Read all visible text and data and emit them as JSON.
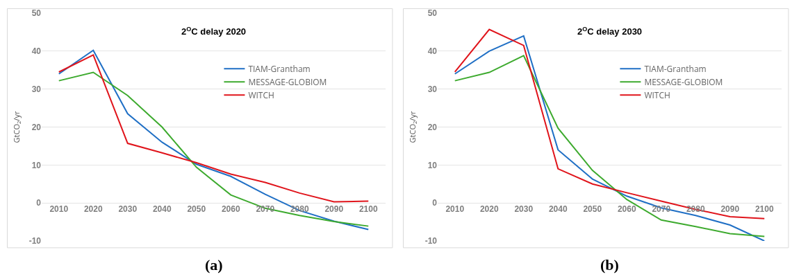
{
  "chart_data": [
    {
      "type": "line",
      "title": "2$^{O}$C delay 2020",
      "ylabel": "GtCO$_{2}$/yr",
      "categories": [
        "2010",
        "2020",
        "2030",
        "2040",
        "2050",
        "2060",
        "2070",
        "2080",
        "2090",
        "2100"
      ],
      "series": [
        {
          "name": "TIAM-Grantham",
          "color": "#1f6fc5",
          "values": [
            34,
            40.2,
            23.5,
            16,
            10.2,
            7,
            2.3,
            -2,
            -4.8,
            -7
          ]
        },
        {
          "name": "MESSAGE-GLOBIOM",
          "color": "#3daa2e",
          "values": [
            32.2,
            34.4,
            28.3,
            20,
            9.4,
            2.1,
            -1.4,
            -3.3,
            -4.9,
            -6.1
          ]
        },
        {
          "name": "WITCH",
          "color": "#e0141b",
          "values": [
            34.5,
            39,
            15.7,
            13.2,
            10.6,
            7.6,
            5.4,
            2.6,
            0.3,
            0.5
          ]
        }
      ],
      "ylim": [
        -10,
        50
      ],
      "yticks": [
        -10,
        0,
        10,
        20,
        30,
        40,
        50
      ],
      "grid": "y",
      "legend": "top right",
      "line_style": "solid",
      "marker": "none",
      "annotations": [
        "(a)"
      ]
    },
    {
      "type": "line",
      "title": "2$^{O}$C delay 2030",
      "ylabel": "GtCO$_{2}$/yr",
      "categories": [
        "2010",
        "2020",
        "2030",
        "2040",
        "2050",
        "2060",
        "2070",
        "2080",
        "2090",
        "2100"
      ],
      "series": [
        {
          "name": "TIAM-Grantham",
          "color": "#1f6fc5",
          "values": [
            34,
            40,
            44,
            14,
            6.3,
            1.8,
            -1.3,
            -3.3,
            -5.8,
            -10
          ]
        },
        {
          "name": "MESSAGE-GLOBIOM",
          "color": "#3daa2e",
          "values": [
            32.2,
            34.4,
            38.8,
            19.7,
            8.6,
            0.9,
            -4.5,
            -6.2,
            -8.1,
            -8.8
          ]
        },
        {
          "name": "WITCH",
          "color": "#e0141b",
          "values": [
            34.5,
            45.7,
            41.5,
            9,
            5,
            2.7,
            0.5,
            -1.7,
            -3.6,
            -4.1
          ]
        }
      ],
      "ylim": [
        -10,
        50
      ],
      "yticks": [
        -10,
        0,
        10,
        20,
        30,
        40,
        50
      ],
      "grid": "y",
      "legend": "top right",
      "line_style": "solid",
      "marker": "none",
      "annotations": [
        "(b)"
      ]
    }
  ]
}
